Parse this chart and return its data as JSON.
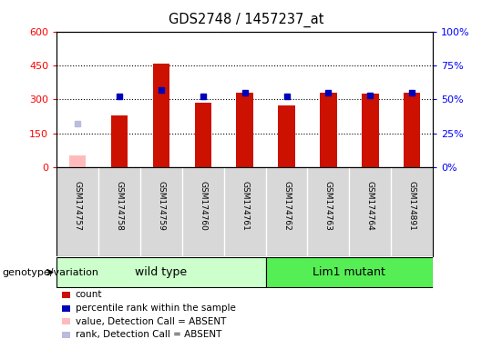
{
  "title": "GDS2748 / 1457237_at",
  "samples": [
    "GSM174757",
    "GSM174758",
    "GSM174759",
    "GSM174760",
    "GSM174761",
    "GSM174762",
    "GSM174763",
    "GSM174764",
    "GSM174891"
  ],
  "counts": [
    null,
    230,
    460,
    285,
    330,
    275,
    330,
    325,
    330
  ],
  "counts_absent": [
    55,
    null,
    null,
    null,
    null,
    null,
    null,
    null,
    null
  ],
  "percentile_ranks_pct": [
    null,
    52,
    57,
    52,
    55,
    52,
    55,
    53,
    55
  ],
  "percentile_ranks_absent_pct": [
    32,
    null,
    null,
    null,
    null,
    null,
    null,
    null,
    null
  ],
  "ylim_left": [
    0,
    600
  ],
  "ylim_right": [
    0,
    100
  ],
  "yticks_left": [
    0,
    150,
    300,
    450,
    600
  ],
  "yticks_right": [
    0,
    25,
    50,
    75,
    100
  ],
  "ytick_labels_right": [
    "0%",
    "25%",
    "50%",
    "75%",
    "100%"
  ],
  "group_labels": [
    "wild type",
    "Lim1 mutant"
  ],
  "group_label_y": "genotype/variation",
  "bar_color_red": "#cc1100",
  "bar_color_pink": "#ffbbbb",
  "dot_color_blue": "#0000bb",
  "dot_color_lightblue": "#bbbbdd",
  "wt_bg": "#ccffcc",
  "lm_bg": "#55ee55",
  "axis_bg": "#d8d8d8",
  "legend_items": [
    {
      "color": "#cc1100",
      "label": "count"
    },
    {
      "color": "#0000bb",
      "label": "percentile rank within the sample"
    },
    {
      "color": "#ffbbbb",
      "label": "value, Detection Call = ABSENT"
    },
    {
      "color": "#bbbbdd",
      "label": "rank, Detection Call = ABSENT"
    }
  ]
}
